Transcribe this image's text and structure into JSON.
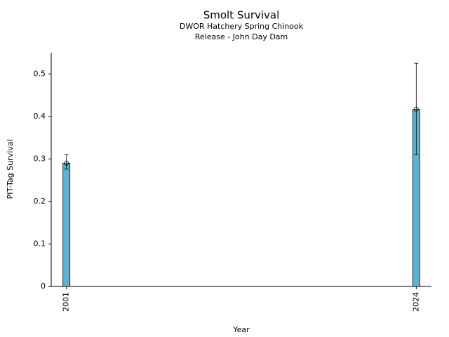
{
  "chart_data": {
    "type": "bar",
    "title": "Smolt Survival",
    "subtitle": [
      "DWOR Hatchery Spring Chinook",
      "Release - John Day Dam"
    ],
    "xlabel": "Year",
    "ylabel": "PIT-Tag Survival",
    "x": [
      2001,
      2024
    ],
    "values": [
      0.29,
      0.417
    ],
    "ci_lower": [
      0.276,
      0.31
    ],
    "ci_upper": [
      0.31,
      0.525
    ],
    "color": "#5ab4d8",
    "xlim": [
      2000,
      2025
    ],
    "xticks": [
      2001,
      2024
    ],
    "ylim": [
      0,
      0.55
    ],
    "yticks": [
      0,
      0.1,
      0.2,
      0.3,
      0.4,
      0.5
    ],
    "grid": false
  }
}
